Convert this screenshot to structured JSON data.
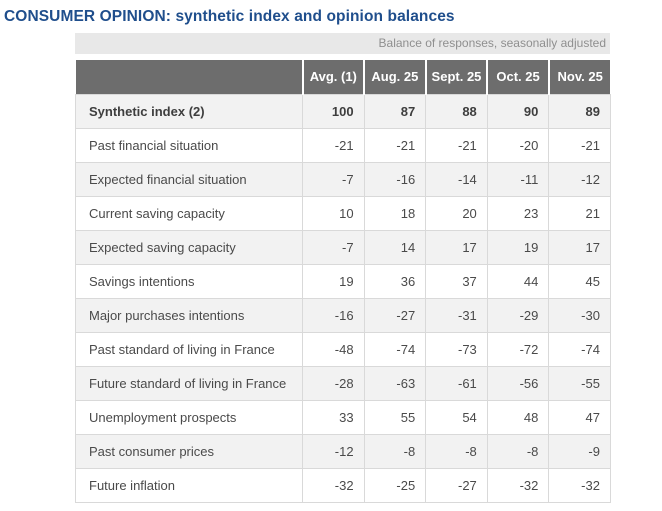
{
  "page": {
    "title": "CONSUMER OPINION: synthetic index and opinion balances"
  },
  "chart_data": {
    "type": "table",
    "title": "CONSUMER OPINION: synthetic index and opinion balances",
    "note": "Balance of responses, seasonally adjusted",
    "columns": [
      "Avg. (1)",
      "Aug. 25",
      "Sept. 25",
      "Oct. 25",
      "Nov. 25"
    ],
    "rows": [
      {
        "label": "Synthetic index (2)",
        "values": [
          "100",
          "87",
          "88",
          "90",
          "89"
        ],
        "bold": true
      },
      {
        "label": "Past financial situation",
        "values": [
          "-21",
          "-21",
          "-21",
          "-20",
          "-21"
        ],
        "bold": false
      },
      {
        "label": "Expected financial situation",
        "values": [
          "-7",
          "-16",
          "-14",
          "-11",
          "-12"
        ],
        "bold": false
      },
      {
        "label": "Current saving capacity",
        "values": [
          "10",
          "18",
          "20",
          "23",
          "21"
        ],
        "bold": false
      },
      {
        "label": "Expected saving capacity",
        "values": [
          "-7",
          "14",
          "17",
          "19",
          "17"
        ],
        "bold": false
      },
      {
        "label": "Savings intentions",
        "values": [
          "19",
          "36",
          "37",
          "44",
          "45"
        ],
        "bold": false
      },
      {
        "label": "Major purchases intentions",
        "values": [
          "-16",
          "-27",
          "-31",
          "-29",
          "-30"
        ],
        "bold": false
      },
      {
        "label": "Past standard of living in France",
        "values": [
          "-48",
          "-74",
          "-73",
          "-72",
          "-74"
        ],
        "bold": false
      },
      {
        "label": "Future standard of living in France",
        "values": [
          "-28",
          "-63",
          "-61",
          "-56",
          "-55"
        ],
        "bold": false
      },
      {
        "label": "Unemployment prospects",
        "values": [
          "33",
          "55",
          "54",
          "48",
          "47"
        ],
        "bold": false
      },
      {
        "label": "Past consumer prices",
        "values": [
          "-12",
          "-8",
          "-8",
          "-8",
          "-9"
        ],
        "bold": false
      },
      {
        "label": "Future inflation",
        "values": [
          "-32",
          "-25",
          "-27",
          "-32",
          "-32"
        ],
        "bold": false
      }
    ]
  },
  "colors": {
    "title_text": "#1f4e8c",
    "header_bg": "#6d6d6d",
    "header_text": "#ffffff",
    "row_alt_bg": "#f2f2f2",
    "row_bg": "#ffffff",
    "border": "#d9d9d9",
    "note_bg": "#e8e8e8",
    "note_text": "#8f8f8f",
    "cell_text": "#4a4a4a"
  }
}
